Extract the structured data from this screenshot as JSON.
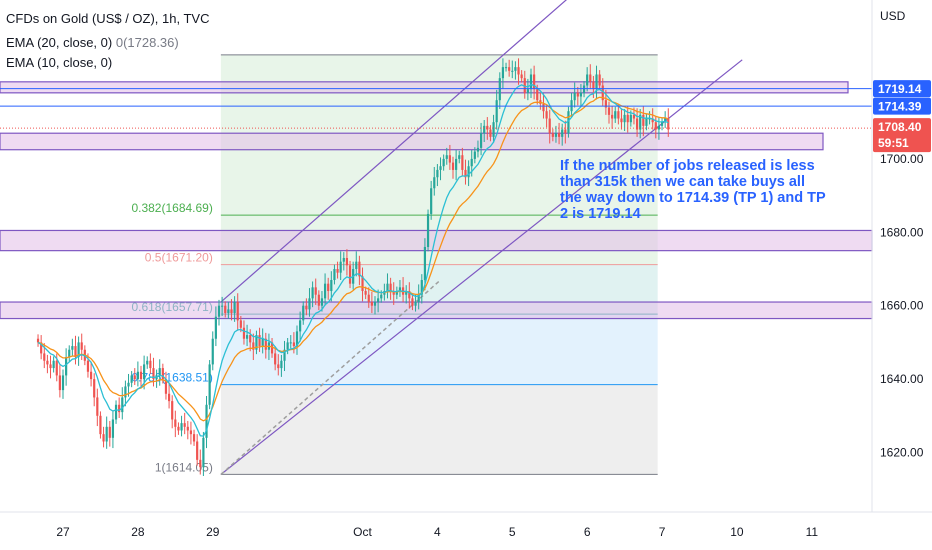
{
  "header": {
    "symbol_title": "CFDs on Gold (US$ / OZ), 1h, TVC",
    "ema1_label": "EMA (20, close, 0)",
    "ema1_value": "0(1728.36)",
    "ema2_label": "EMA (10, close, 0)"
  },
  "colors": {
    "up": "#26a69a",
    "down": "#ef5350",
    "ema20": "#f7931a",
    "ema10": "#2bbfd4",
    "channel": "#7e57c2",
    "accent_blue": "#2962ff",
    "zone_purple": "#e1bee7",
    "fib_green": "#e8f5e9",
    "fib_teal": "#e0f2f1",
    "fib_blue": "#e3f2fd",
    "fib_gray": "#eeeeee"
  },
  "annotation": {
    "text": "If the number of jobs released is less than 315k then we can take buys all the way down to 1714.39 (TP 1) and TP 2 is 1719.14"
  },
  "chart_data": {
    "type": "candlestick",
    "title": "CFDs on Gold (US$ / OZ), 1h, TVC",
    "currency_label": "USD",
    "y_axis_ticks": [
      "1620.00",
      "1640.00",
      "1660.00",
      "1680.00",
      "1700.00"
    ],
    "y_axis_values": [
      1620,
      1640,
      1660,
      1680,
      1700
    ],
    "y_range": [
      1600,
      1740
    ],
    "x_axis_labels": [
      "27",
      "28",
      "29",
      "Oct",
      "4",
      "5",
      "6",
      "7",
      "10",
      "11"
    ],
    "x_axis_index": [
      0,
      24,
      48,
      96,
      120,
      144,
      168,
      192,
      216,
      240
    ],
    "price_labels": [
      {
        "text": "1719.14",
        "price": 1719.14,
        "color": "#2962ff"
      },
      {
        "text": "1714.39",
        "price": 1714.39,
        "color": "#2962ff"
      }
    ],
    "last_price": {
      "price": "1708.40",
      "countdown": "59:51",
      "value": 1708.4,
      "color": "#ef5350"
    },
    "fibonacci": [
      {
        "ratio": 0,
        "price": 1728.36,
        "label": "0(1728.36)"
      },
      {
        "ratio": 0.382,
        "price": 1684.69,
        "label": "0.382(1684.69)"
      },
      {
        "ratio": 0.5,
        "price": 1671.2,
        "label": "0.5(1671.20)"
      },
      {
        "ratio": 0.618,
        "price": 1657.71,
        "label": "0.618(1657.71)"
      },
      {
        "ratio": 0.786,
        "price": 1638.51,
        "label": "0.786(1638.51)"
      },
      {
        "ratio": 1,
        "price": 1614.05,
        "label": "1(1614.05)"
      }
    ],
    "horizontal_lines": [
      1719.14,
      1714.39
    ],
    "zones": [
      {
        "top": 1721,
        "bottom": 1718,
        "extent": "past"
      },
      {
        "top": 1707,
        "bottom": 1702.5,
        "extent": "past"
      },
      {
        "top": 1680.5,
        "bottom": 1675,
        "extent": "full"
      },
      {
        "top": 1661,
        "bottom": 1656.5,
        "extent": "full"
      }
    ],
    "channel": {
      "upper": [
        {
          "t": 50.6,
          "p": 1661
        },
        {
          "t": 163,
          "p": 1744.6
        }
      ],
      "lower": [
        {
          "t": 50.6,
          "p": 1614
        },
        {
          "t": 217.7,
          "p": 1727
        }
      ]
    },
    "series": [
      {
        "name": "Gold CFD 1h close (approx.)",
        "x_start": -8,
        "values": [
          1650,
          1647,
          1645,
          1644,
          1643,
          1645,
          1641,
          1637,
          1641,
          1646,
          1648,
          1649,
          1646,
          1650,
          1648,
          1645,
          1642,
          1640,
          1635,
          1630,
          1625,
          1623,
          1627,
          1624,
          1629,
          1633,
          1631,
          1635,
          1638,
          1639,
          1641,
          1640,
          1642,
          1640,
          1644,
          1645,
          1643,
          1640,
          1641,
          1643,
          1640,
          1636,
          1634,
          1629,
          1627,
          1626,
          1628,
          1627,
          1626,
          1625,
          1623,
          1618,
          1616,
          1624,
          1633,
          1644,
          1651,
          1657,
          1660,
          1660,
          1658,
          1659,
          1658,
          1661,
          1656,
          1654,
          1651,
          1652,
          1650,
          1648,
          1652,
          1649,
          1651,
          1648,
          1650,
          1647,
          1644,
          1643,
          1645,
          1648,
          1650,
          1650,
          1649,
          1653,
          1656,
          1660,
          1659,
          1662,
          1665,
          1663,
          1660,
          1662,
          1666,
          1664,
          1667,
          1670,
          1669,
          1672,
          1673,
          1671,
          1666,
          1670,
          1672,
          1668,
          1664,
          1663,
          1661,
          1660,
          1661,
          1662,
          1663,
          1664,
          1666,
          1664,
          1663,
          1664,
          1665,
          1663,
          1664,
          1662,
          1660,
          1661,
          1663,
          1667,
          1676,
          1685,
          1692,
          1695,
          1697,
          1698,
          1700,
          1701,
          1699,
          1697,
          1700,
          1701,
          1697,
          1695,
          1698,
          1700,
          1702,
          1703,
          1707,
          1709,
          1708,
          1706,
          1710,
          1716,
          1722,
          1725,
          1725,
          1724,
          1724,
          1725,
          1723,
          1722,
          1718,
          1719,
          1723,
          1719,
          1716,
          1715,
          1713,
          1711,
          1707,
          1706,
          1707,
          1706,
          1708,
          1707,
          1713,
          1716,
          1718,
          1717,
          1718,
          1720,
          1723,
          1721,
          1719,
          1723,
          1720,
          1716,
          1714,
          1712,
          1711,
          1713,
          1711,
          1710,
          1712,
          1710,
          1712,
          1711,
          1708,
          1712,
          1709,
          1711,
          1711,
          1710,
          1708,
          1709,
          1710,
          1711,
          1708
        ]
      }
    ]
  }
}
